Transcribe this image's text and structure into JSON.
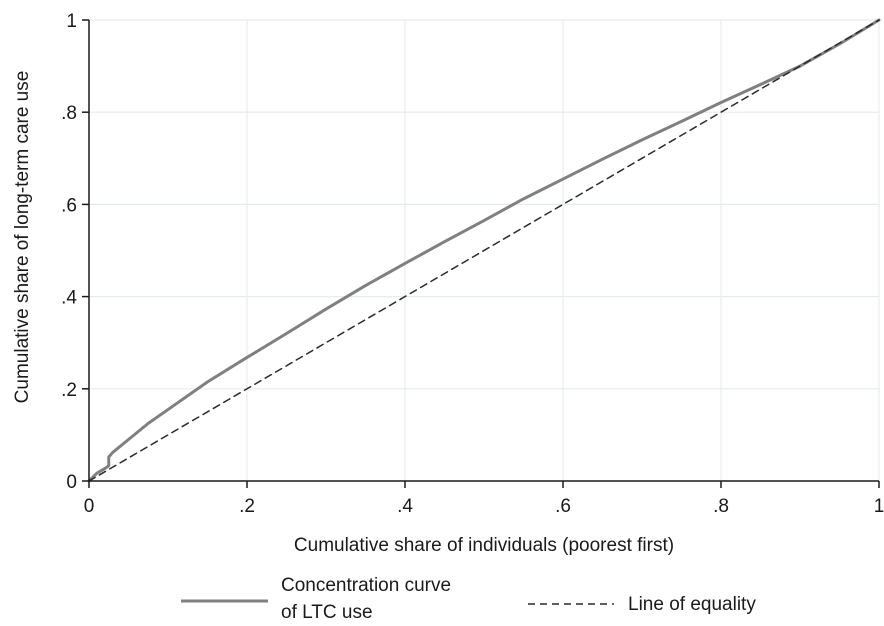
{
  "chart_data": {
    "type": "line",
    "title": "",
    "xlabel": "Cumulative share of individuals (poorest first)",
    "ylabel": "Cumulative share of long-term care use",
    "xlim": [
      0,
      1
    ],
    "ylim": [
      0,
      1
    ],
    "xticks": [
      0,
      0.2,
      0.4,
      0.6,
      0.8,
      1
    ],
    "xtick_labels": [
      "0",
      ".2",
      ".4",
      ".6",
      ".8",
      "1"
    ],
    "yticks": [
      0,
      0.2,
      0.4,
      0.6,
      0.8,
      1
    ],
    "ytick_labels": [
      "0",
      ".2",
      ".4",
      ".6",
      ".8",
      "1"
    ],
    "grid": true,
    "legend_position": "bottom",
    "series": [
      {
        "name": "Concentration curve of LTC use",
        "legend_lines": [
          "Concentration curve",
          "of LTC use"
        ],
        "style": "solid",
        "color": "#808080",
        "x": [
          0,
          0.01,
          0.02,
          0.025,
          0.025,
          0.03,
          0.05,
          0.075,
          0.1,
          0.15,
          0.2,
          0.25,
          0.3,
          0.35,
          0.4,
          0.45,
          0.5,
          0.55,
          0.6,
          0.65,
          0.7,
          0.75,
          0.8,
          0.85,
          0.9,
          0.95,
          1.0
        ],
        "y": [
          0,
          0.017,
          0.027,
          0.033,
          0.052,
          0.062,
          0.09,
          0.125,
          0.155,
          0.215,
          0.268,
          0.32,
          0.373,
          0.424,
          0.472,
          0.519,
          0.565,
          0.612,
          0.655,
          0.698,
          0.74,
          0.78,
          0.821,
          0.86,
          0.9,
          0.948,
          1.0
        ]
      },
      {
        "name": "Line of equality",
        "legend_lines": [
          "Line of equality"
        ],
        "style": "dashed",
        "color": "#2a2a2a",
        "x": [
          0,
          1
        ],
        "y": [
          0,
          1
        ]
      }
    ]
  }
}
